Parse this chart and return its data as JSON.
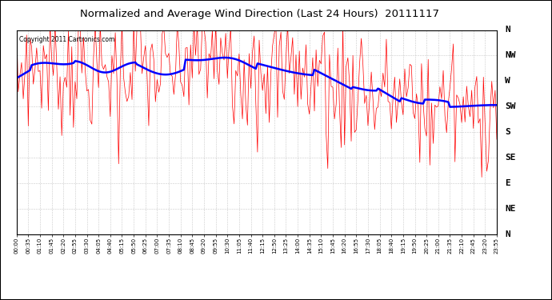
{
  "title": "Normalized and Average Wind Direction (Last 24 Hours)  20111117",
  "copyright_text": "Copyright 2011 Cartronics.com",
  "background_color": "#ffffff",
  "plot_bg_color": "#ffffff",
  "grid_color": "#bbbbbb",
  "red_color": "#ff0000",
  "blue_color": "#0000ff",
  "ytick_labels": [
    "N",
    "NW",
    "W",
    "SW",
    "S",
    "SE",
    "E",
    "NE",
    "N"
  ],
  "ytick_values": [
    360,
    315,
    270,
    225,
    180,
    135,
    90,
    45,
    0
  ],
  "ylim": [
    0,
    360
  ],
  "xtick_labels": [
    "00:00",
    "00:35",
    "01:10",
    "01:45",
    "02:20",
    "02:55",
    "03:30",
    "04:05",
    "04:40",
    "05:15",
    "05:50",
    "06:25",
    "07:00",
    "07:35",
    "08:10",
    "08:45",
    "09:20",
    "09:55",
    "10:30",
    "11:05",
    "11:40",
    "12:15",
    "12:50",
    "13:25",
    "14:00",
    "14:35",
    "15:10",
    "15:45",
    "16:20",
    "16:55",
    "17:30",
    "18:05",
    "18:40",
    "19:15",
    "19:50",
    "20:25",
    "21:00",
    "21:35",
    "22:10",
    "22:45",
    "23:20",
    "23:55"
  ]
}
